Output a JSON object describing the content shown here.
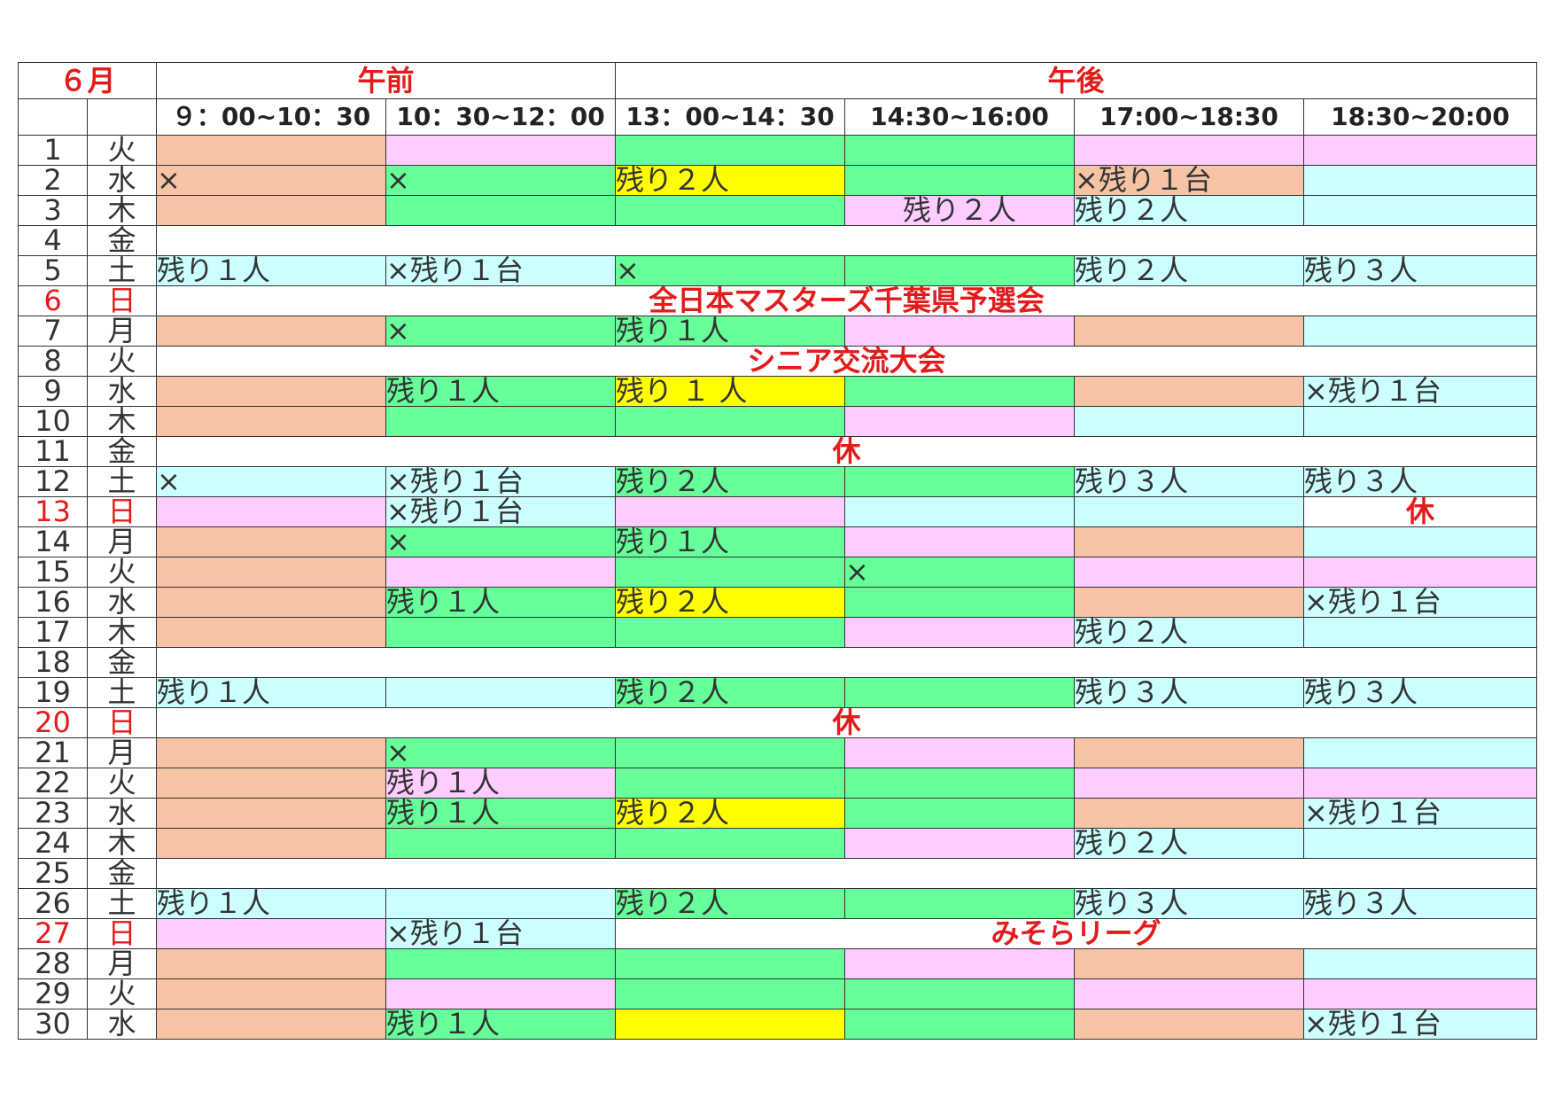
{
  "header": {
    "month": "６月",
    "morning": "午前",
    "afternoon": "午後",
    "slots": [
      "９：00~10：30",
      "10：30~12：00",
      "13：00~14：30",
      "14:30~16:00",
      "17:00~18:30",
      "18:30~20:00"
    ]
  },
  "colors": {
    "orange": "#f6c4a4",
    "pink": "#ffccff",
    "green": "#66ff99",
    "cyan": "#ccffff",
    "yellow": "#ffff00",
    "red_text": "#e31b1b"
  },
  "rows": [
    {
      "day": "1",
      "dow": "火",
      "red": false,
      "cells": [
        {
          "c": "o",
          "t": ""
        },
        {
          "c": "p",
          "t": ""
        },
        {
          "c": "g",
          "t": ""
        },
        {
          "c": "g",
          "t": ""
        },
        {
          "c": "p",
          "t": ""
        },
        {
          "c": "p",
          "t": ""
        }
      ]
    },
    {
      "day": "2",
      "dow": "水",
      "red": false,
      "cells": [
        {
          "c": "o",
          "t": "×"
        },
        {
          "c": "g",
          "t": "×"
        },
        {
          "c": "y",
          "t": "残り２人"
        },
        {
          "c": "g",
          "t": ""
        },
        {
          "c": "o",
          "t": "×残り１台"
        },
        {
          "c": "c2",
          "t": ""
        }
      ]
    },
    {
      "day": "3",
      "dow": "木",
      "red": false,
      "cells": [
        {
          "c": "o",
          "t": ""
        },
        {
          "c": "g",
          "t": ""
        },
        {
          "c": "g",
          "t": ""
        },
        {
          "c": "p",
          "t": "残り２人",
          "center": true
        },
        {
          "c": "c2",
          "t": "残り２人"
        },
        {
          "c": "c2",
          "t": ""
        }
      ]
    },
    {
      "day": "4",
      "dow": "金",
      "red": false,
      "span": {
        "c": "w",
        "t": "",
        "n": 6
      }
    },
    {
      "day": "5",
      "dow": "土",
      "red": false,
      "cells": [
        {
          "c": "c2",
          "t": "残り１人"
        },
        {
          "c": "c2",
          "t": "×残り１台"
        },
        {
          "c": "g",
          "t": "×"
        },
        {
          "c": "g",
          "t": ""
        },
        {
          "c": "c2",
          "t": "残り２人"
        },
        {
          "c": "c2",
          "t": "残り３人"
        }
      ]
    },
    {
      "day": "6",
      "dow": "日",
      "red": true,
      "span": {
        "c": "w",
        "t": "全日本マスターズ千葉県予選会",
        "n": 6
      }
    },
    {
      "day": "7",
      "dow": "月",
      "red": false,
      "cells": [
        {
          "c": "o",
          "t": ""
        },
        {
          "c": "g",
          "t": "×"
        },
        {
          "c": "g",
          "t": "残り１人"
        },
        {
          "c": "p",
          "t": ""
        },
        {
          "c": "o",
          "t": ""
        },
        {
          "c": "c2",
          "t": ""
        }
      ]
    },
    {
      "day": "8",
      "dow": "火",
      "red": false,
      "span": {
        "c": "w",
        "t": "シニア交流大会",
        "n": 6
      }
    },
    {
      "day": "9",
      "dow": "水",
      "red": false,
      "cells": [
        {
          "c": "o",
          "t": ""
        },
        {
          "c": "g",
          "t": "残り１人"
        },
        {
          "c": "y",
          "t": "残り １ 人"
        },
        {
          "c": "g",
          "t": ""
        },
        {
          "c": "o",
          "t": ""
        },
        {
          "c": "c2",
          "t": "×残り１台"
        }
      ]
    },
    {
      "day": "10",
      "dow": "木",
      "red": false,
      "cells": [
        {
          "c": "o",
          "t": ""
        },
        {
          "c": "g",
          "t": ""
        },
        {
          "c": "g",
          "t": ""
        },
        {
          "c": "p",
          "t": ""
        },
        {
          "c": "c2",
          "t": ""
        },
        {
          "c": "c2",
          "t": ""
        }
      ]
    },
    {
      "day": "11",
      "dow": "金",
      "red": false,
      "span": {
        "c": "w",
        "t": "休",
        "n": 6
      }
    },
    {
      "day": "12",
      "dow": "土",
      "red": false,
      "cells": [
        {
          "c": "c2",
          "t": "×"
        },
        {
          "c": "c2",
          "t": "×残り１台"
        },
        {
          "c": "g",
          "t": "残り２人"
        },
        {
          "c": "g",
          "t": ""
        },
        {
          "c": "c2",
          "t": "残り３人"
        },
        {
          "c": "c2",
          "t": "残り３人"
        }
      ]
    },
    {
      "day": "13",
      "dow": "日",
      "red": true,
      "cells": [
        {
          "c": "p",
          "t": ""
        },
        {
          "c": "c2",
          "t": "×残り１台"
        },
        {
          "c": "p",
          "t": ""
        },
        {
          "c": "c2",
          "t": ""
        },
        {
          "c": "c2",
          "t": ""
        },
        {
          "c": "w",
          "t": "休",
          "ev": true
        }
      ]
    },
    {
      "day": "14",
      "dow": "月",
      "red": false,
      "cells": [
        {
          "c": "o",
          "t": ""
        },
        {
          "c": "g",
          "t": "×"
        },
        {
          "c": "g",
          "t": "残り１人"
        },
        {
          "c": "p",
          "t": ""
        },
        {
          "c": "o",
          "t": ""
        },
        {
          "c": "c2",
          "t": ""
        }
      ]
    },
    {
      "day": "15",
      "dow": "火",
      "red": false,
      "cells": [
        {
          "c": "o",
          "t": ""
        },
        {
          "c": "p",
          "t": ""
        },
        {
          "c": "g",
          "t": ""
        },
        {
          "c": "g",
          "t": "×"
        },
        {
          "c": "p",
          "t": ""
        },
        {
          "c": "p",
          "t": ""
        }
      ]
    },
    {
      "day": "16",
      "dow": "水",
      "red": false,
      "cells": [
        {
          "c": "o",
          "t": ""
        },
        {
          "c": "g",
          "t": "残り１人"
        },
        {
          "c": "y",
          "t": "残り２人"
        },
        {
          "c": "g",
          "t": ""
        },
        {
          "c": "o",
          "t": ""
        },
        {
          "c": "c2",
          "t": "×残り１台"
        }
      ]
    },
    {
      "day": "17",
      "dow": "木",
      "red": false,
      "cells": [
        {
          "c": "o",
          "t": ""
        },
        {
          "c": "g",
          "t": ""
        },
        {
          "c": "g",
          "t": ""
        },
        {
          "c": "p",
          "t": ""
        },
        {
          "c": "c2",
          "t": "残り２人"
        },
        {
          "c": "c2",
          "t": ""
        }
      ]
    },
    {
      "day": "18",
      "dow": "金",
      "red": false,
      "span": {
        "c": "w",
        "t": "",
        "n": 6
      }
    },
    {
      "day": "19",
      "dow": "土",
      "red": false,
      "cells": [
        {
          "c": "c2",
          "t": "残り１人"
        },
        {
          "c": "c2",
          "t": ""
        },
        {
          "c": "g",
          "t": "残り２人"
        },
        {
          "c": "g",
          "t": ""
        },
        {
          "c": "c2",
          "t": "残り３人"
        },
        {
          "c": "c2",
          "t": "残り３人"
        }
      ]
    },
    {
      "day": "20",
      "dow": "日",
      "red": true,
      "span": {
        "c": "w",
        "t": "休",
        "n": 6
      }
    },
    {
      "day": "21",
      "dow": "月",
      "red": false,
      "cells": [
        {
          "c": "o",
          "t": ""
        },
        {
          "c": "g",
          "t": "×"
        },
        {
          "c": "g",
          "t": ""
        },
        {
          "c": "p",
          "t": ""
        },
        {
          "c": "o",
          "t": ""
        },
        {
          "c": "c2",
          "t": ""
        }
      ]
    },
    {
      "day": "22",
      "dow": "火",
      "red": false,
      "cells": [
        {
          "c": "o",
          "t": ""
        },
        {
          "c": "p",
          "t": "残り１人"
        },
        {
          "c": "g",
          "t": ""
        },
        {
          "c": "g",
          "t": ""
        },
        {
          "c": "p",
          "t": ""
        },
        {
          "c": "p",
          "t": ""
        }
      ]
    },
    {
      "day": "23",
      "dow": "水",
      "red": false,
      "cells": [
        {
          "c": "o",
          "t": ""
        },
        {
          "c": "g",
          "t": "残り１人"
        },
        {
          "c": "y",
          "t": "残り２人"
        },
        {
          "c": "g",
          "t": ""
        },
        {
          "c": "o",
          "t": ""
        },
        {
          "c": "c2",
          "t": "×残り１台"
        }
      ]
    },
    {
      "day": "24",
      "dow": "木",
      "red": false,
      "cells": [
        {
          "c": "o",
          "t": ""
        },
        {
          "c": "g",
          "t": ""
        },
        {
          "c": "g",
          "t": ""
        },
        {
          "c": "p",
          "t": ""
        },
        {
          "c": "c2",
          "t": "残り２人"
        },
        {
          "c": "c2",
          "t": ""
        }
      ]
    },
    {
      "day": "25",
      "dow": "金",
      "red": false,
      "span": {
        "c": "w",
        "t": "",
        "n": 6
      }
    },
    {
      "day": "26",
      "dow": "土",
      "red": false,
      "cells": [
        {
          "c": "c2",
          "t": "残り１人"
        },
        {
          "c": "c2",
          "t": ""
        },
        {
          "c": "g",
          "t": "残り２人"
        },
        {
          "c": "g",
          "t": ""
        },
        {
          "c": "c2",
          "t": "残り３人"
        },
        {
          "c": "c2",
          "t": "残り３人"
        }
      ]
    },
    {
      "day": "27",
      "dow": "日",
      "red": true,
      "cells": [
        {
          "c": "p",
          "t": ""
        },
        {
          "c": "c2",
          "t": "×残り１台"
        }
      ],
      "tail": {
        "c": "w",
        "t": "みそらリーグ",
        "n": 4
      }
    },
    {
      "day": "28",
      "dow": "月",
      "red": false,
      "cells": [
        {
          "c": "o",
          "t": ""
        },
        {
          "c": "g",
          "t": ""
        },
        {
          "c": "g",
          "t": ""
        },
        {
          "c": "p",
          "t": ""
        },
        {
          "c": "o",
          "t": ""
        },
        {
          "c": "c2",
          "t": ""
        }
      ]
    },
    {
      "day": "29",
      "dow": "火",
      "red": false,
      "cells": [
        {
          "c": "o",
          "t": ""
        },
        {
          "c": "p",
          "t": ""
        },
        {
          "c": "g",
          "t": ""
        },
        {
          "c": "g",
          "t": ""
        },
        {
          "c": "p",
          "t": ""
        },
        {
          "c": "p",
          "t": ""
        }
      ]
    },
    {
      "day": "30",
      "dow": "水",
      "red": false,
      "cells": [
        {
          "c": "o",
          "t": ""
        },
        {
          "c": "g",
          "t": "残り１人"
        },
        {
          "c": "y",
          "t": ""
        },
        {
          "c": "g",
          "t": ""
        },
        {
          "c": "o",
          "t": ""
        },
        {
          "c": "c2",
          "t": "×残り１台"
        }
      ]
    }
  ]
}
